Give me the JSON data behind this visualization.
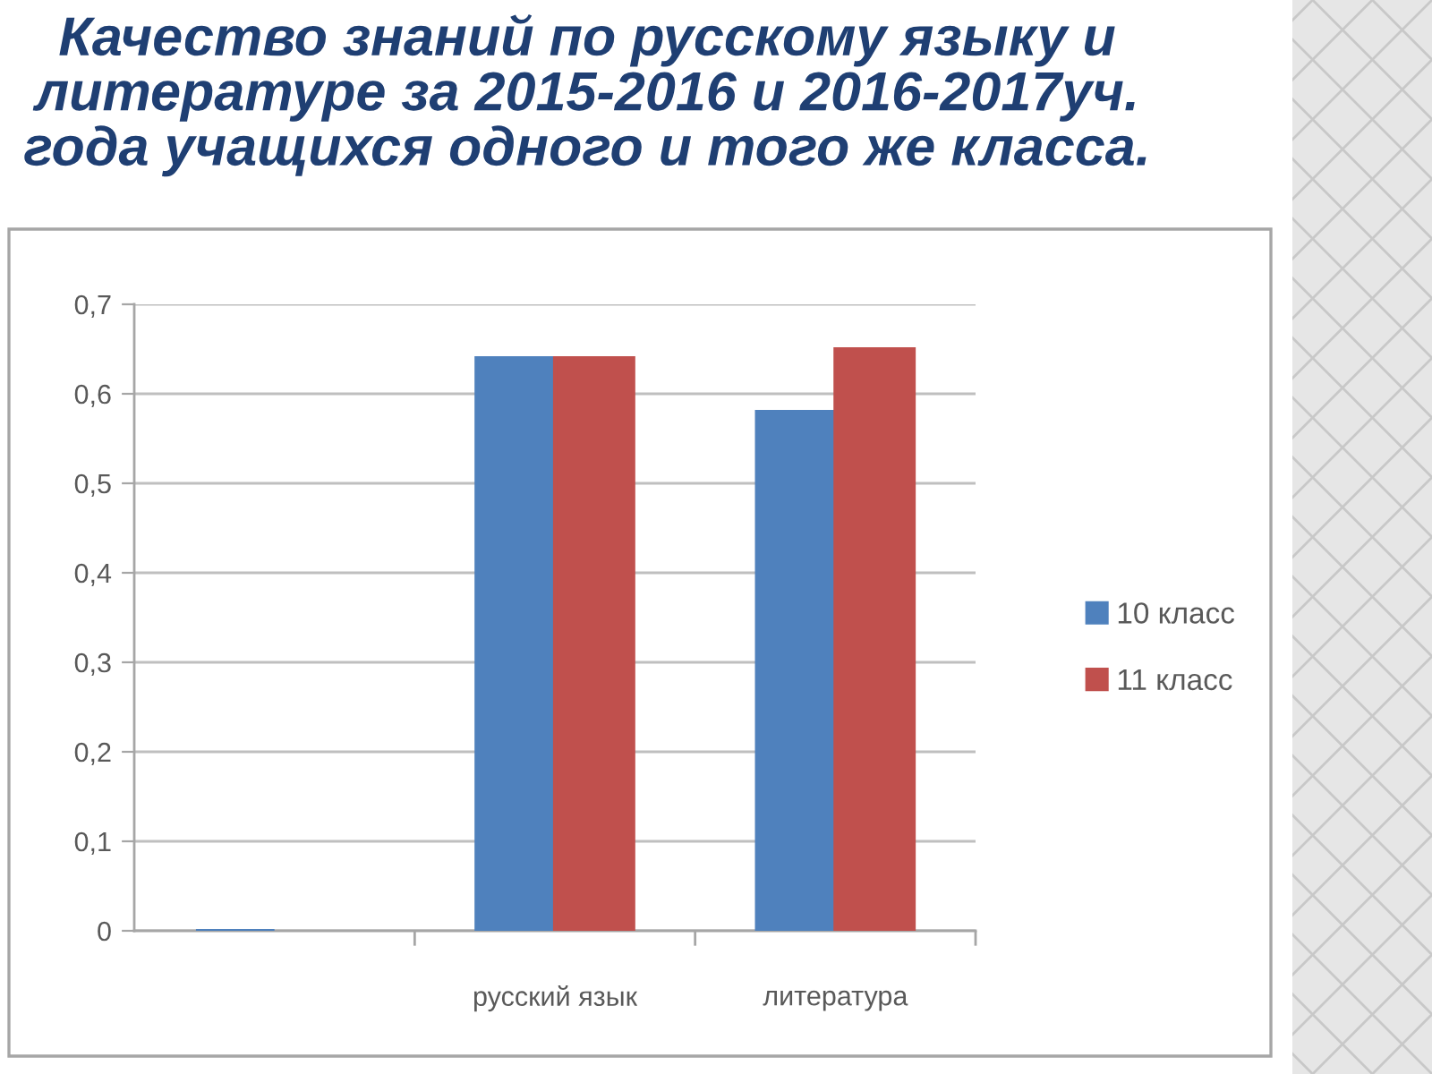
{
  "chart_data": {
    "type": "bar",
    "title": "Качество знаний по русскому языку и\nлитературе за 2015-2016 и 2016-2017уч.\nгода учащихся одного и того же класса.",
    "categories": [
      null,
      "русский язык",
      "литература"
    ],
    "series": [
      {
        "name": "10 класс",
        "color": "#4f81bd",
        "values": [
          0,
          0.64,
          0.58
        ]
      },
      {
        "name": "11 класс",
        "color": "#c0504d",
        "values": [
          null,
          0.64,
          0.65
        ]
      }
    ],
    "ylim": [
      0,
      0.7
    ],
    "yticks": [
      0,
      {
        "value": 0.1,
        "label": "0,1"
      },
      {
        "value": 0.2,
        "label": "0,2"
      },
      {
        "value": 0.3,
        "label": "0,3"
      },
      {
        "value": 0.4,
        "label": "0,4"
      },
      {
        "value": 0.5,
        "label": "0,5"
      },
      {
        "value": 0.6,
        "label": "0,6"
      },
      {
        "value": 0.7,
        "label": "0,7"
      }
    ],
    "grid": "y",
    "legend": "right"
  }
}
